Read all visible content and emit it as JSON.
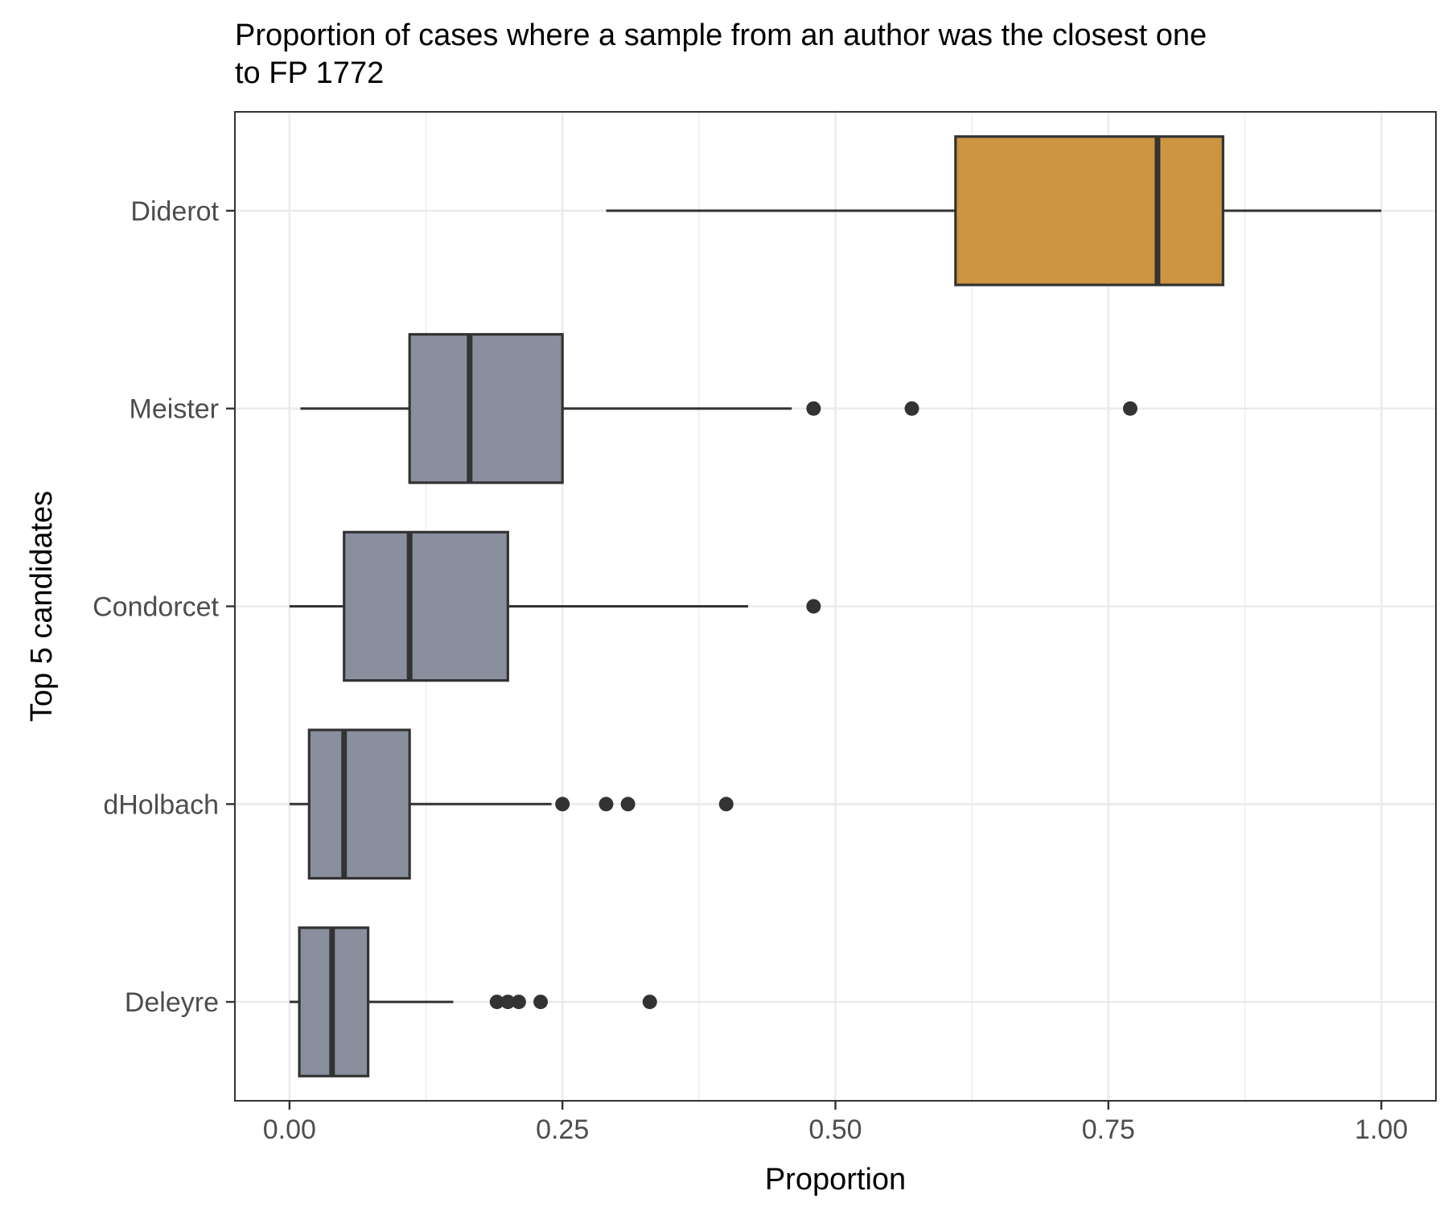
{
  "chart_data": {
    "type": "boxplot",
    "orientation": "horizontal",
    "title": "Proportion of cases where a sample from an author was the closest one to FP 1772",
    "title_lines": [
      "Proportion of cases where a sample from an author was the closest one",
      "to FP 1772"
    ],
    "xlabel": "Proportion",
    "ylabel": "Top 5 candidates",
    "xlim": [
      -0.05,
      1.05
    ],
    "xticks": [
      0.0,
      0.25,
      0.5,
      0.75,
      1.0
    ],
    "xtick_labels": [
      "0.00",
      "0.25",
      "0.50",
      "0.75",
      "1.00"
    ],
    "grid": true,
    "categories": [
      "Diderot",
      "Meister",
      "Condorcet",
      "dHolbach",
      "Deleyre"
    ],
    "boxes": [
      {
        "name": "Diderot",
        "whisker_low": 0.29,
        "q1": 0.61,
        "median": 0.795,
        "q3": 0.855,
        "whisker_high": 1.0,
        "outliers": [],
        "color": "#cd9542"
      },
      {
        "name": "Meister",
        "whisker_low": 0.01,
        "q1": 0.11,
        "median": 0.165,
        "q3": 0.25,
        "whisker_high": 0.46,
        "outliers": [
          0.48,
          0.57,
          0.77
        ],
        "color": "#898f9d"
      },
      {
        "name": "Condorcet",
        "whisker_low": 0.0,
        "q1": 0.05,
        "median": 0.11,
        "q3": 0.2,
        "whisker_high": 0.42,
        "outliers": [
          0.48
        ],
        "color": "#898f9d"
      },
      {
        "name": "dHolbach",
        "whisker_low": 0.0,
        "q1": 0.018,
        "median": 0.05,
        "q3": 0.11,
        "whisker_high": 0.24,
        "outliers": [
          0.25,
          0.29,
          0.31,
          0.4
        ],
        "color": "#898f9d"
      },
      {
        "name": "Deleyre",
        "whisker_low": 0.0,
        "q1": 0.009,
        "median": 0.039,
        "q3": 0.072,
        "whisker_high": 0.15,
        "outliers": [
          0.19,
          0.2,
          0.21,
          0.23,
          0.33
        ],
        "color": "#898f9d"
      }
    ]
  }
}
